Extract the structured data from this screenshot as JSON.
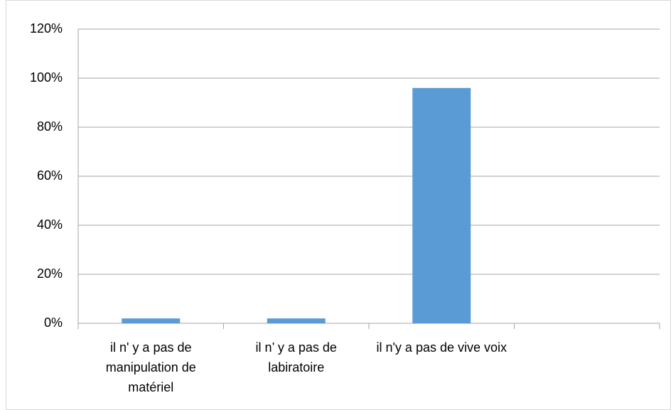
{
  "chart_data": {
    "type": "bar",
    "categories": [
      "il n' y a pas de manipulation de matériel",
      "il n’ y a pas de labiratoire",
      "il n'y a pas de vive voix",
      null
    ],
    "values": [
      2,
      2,
      96,
      null
    ],
    "color": "#5b9bd5",
    "ylim": [
      0,
      120
    ],
    "yticks": [
      {
        "value": 0,
        "label": "0%"
      },
      {
        "value": 20,
        "label": "20%"
      },
      {
        "value": 40,
        "label": "40%"
      },
      {
        "value": 60,
        "label": "60%"
      },
      {
        "value": 80,
        "label": "80%"
      },
      {
        "value": 100,
        "label": "100%"
      },
      {
        "value": 120,
        "label": "120%"
      }
    ],
    "grid": true
  }
}
